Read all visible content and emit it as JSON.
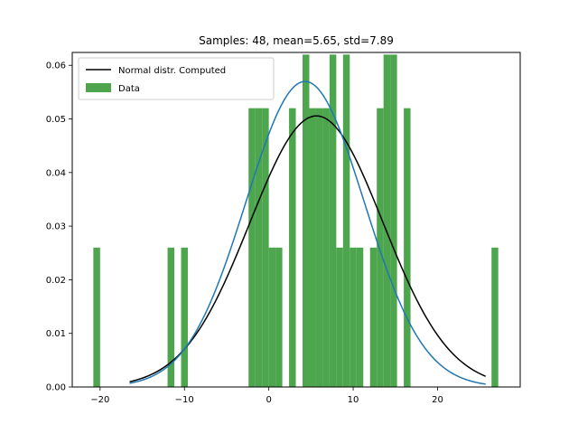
{
  "chart_data": {
    "type": "bar",
    "title": "Samples: 48, mean=5.65, std=7.89",
    "xlabel": "",
    "ylabel": "",
    "xlim": [
      -23.3,
      29.8
    ],
    "ylim": [
      0,
      0.0624
    ],
    "x_ticks": [
      -20,
      -10,
      0,
      10,
      20
    ],
    "x_tick_labels": [
      "−20",
      "−10",
      "0",
      "10",
      "20"
    ],
    "y_ticks": [
      0.0,
      0.01,
      0.02,
      0.03,
      0.04,
      0.05,
      0.06
    ],
    "y_tick_labels": [
      "0.00",
      "0.01",
      "0.02",
      "0.03",
      "0.04",
      "0.05",
      "0.06"
    ],
    "grid": false,
    "legend_position": "upper left",
    "series": [
      {
        "name": "Data",
        "type": "histogram",
        "color": "#4da64d",
        "bin_width": 0.8,
        "bins": [
          {
            "x": -20.8,
            "y": 0.026
          },
          {
            "x": -12.0,
            "y": 0.026
          },
          {
            "x": -10.4,
            "y": 0.026
          },
          {
            "x": -2.4,
            "y": 0.052
          },
          {
            "x": -1.6,
            "y": 0.052
          },
          {
            "x": -0.8,
            "y": 0.052
          },
          {
            "x": 0.0,
            "y": 0.026
          },
          {
            "x": 0.8,
            "y": 0.026
          },
          {
            "x": 2.4,
            "y": 0.052
          },
          {
            "x": 4.0,
            "y": 0.062
          },
          {
            "x": 4.8,
            "y": 0.052
          },
          {
            "x": 5.6,
            "y": 0.052
          },
          {
            "x": 6.4,
            "y": 0.052
          },
          {
            "x": 7.2,
            "y": 0.062
          },
          {
            "x": 8.0,
            "y": 0.026
          },
          {
            "x": 8.8,
            "y": 0.062
          },
          {
            "x": 9.6,
            "y": 0.026
          },
          {
            "x": 10.4,
            "y": 0.026
          },
          {
            "x": 12.0,
            "y": 0.026
          },
          {
            "x": 12.8,
            "y": 0.052
          },
          {
            "x": 13.6,
            "y": 0.062
          },
          {
            "x": 14.4,
            "y": 0.062
          },
          {
            "x": 16.0,
            "y": 0.052
          },
          {
            "x": 26.4,
            "y": 0.026
          }
        ]
      },
      {
        "name": "Normal distr. Computed",
        "type": "line",
        "color": "#000000",
        "curve": {
          "kind": "normal",
          "mean": 5.65,
          "std": 7.89,
          "x_start": -16.5,
          "x_end": 25.7
        }
      },
      {
        "name": "",
        "type": "line",
        "color": "#1f77b4",
        "curve": {
          "kind": "normal",
          "mean": 4.3,
          "std": 7.0,
          "x_start": -16.5,
          "x_end": 25.7
        }
      }
    ]
  }
}
